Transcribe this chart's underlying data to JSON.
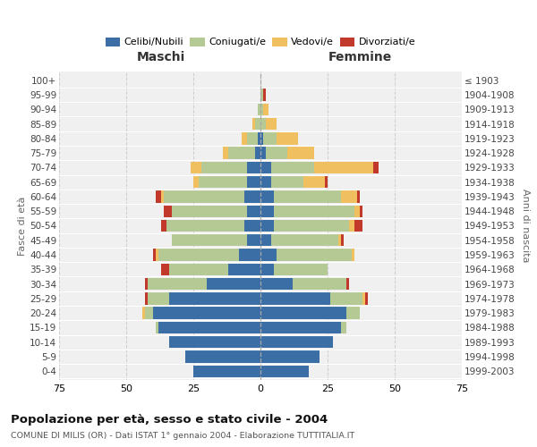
{
  "age_groups": [
    "0-4",
    "5-9",
    "10-14",
    "15-19",
    "20-24",
    "25-29",
    "30-34",
    "35-39",
    "40-44",
    "45-49",
    "50-54",
    "55-59",
    "60-64",
    "65-69",
    "70-74",
    "75-79",
    "80-84",
    "85-89",
    "90-94",
    "95-99",
    "100+"
  ],
  "birth_years": [
    "1999-2003",
    "1994-1998",
    "1989-1993",
    "1984-1988",
    "1979-1983",
    "1974-1978",
    "1969-1973",
    "1964-1968",
    "1959-1963",
    "1954-1958",
    "1949-1953",
    "1944-1948",
    "1939-1943",
    "1934-1938",
    "1929-1933",
    "1924-1928",
    "1919-1923",
    "1914-1918",
    "1909-1913",
    "1904-1908",
    "≤ 1903"
  ],
  "maschi": {
    "celibi": [
      25,
      28,
      34,
      38,
      40,
      34,
      20,
      12,
      8,
      5,
      6,
      5,
      6,
      5,
      5,
      2,
      1,
      0,
      0,
      0,
      0
    ],
    "coniugati": [
      0,
      0,
      0,
      1,
      3,
      8,
      22,
      22,
      30,
      28,
      29,
      28,
      30,
      18,
      17,
      10,
      4,
      2,
      1,
      0,
      0
    ],
    "vedovi": [
      0,
      0,
      0,
      0,
      1,
      0,
      0,
      0,
      1,
      0,
      0,
      0,
      1,
      2,
      4,
      2,
      2,
      1,
      0,
      0,
      0
    ],
    "divorziati": [
      0,
      0,
      0,
      0,
      0,
      1,
      1,
      3,
      1,
      0,
      2,
      3,
      2,
      0,
      0,
      0,
      0,
      0,
      0,
      0,
      0
    ]
  },
  "femmine": {
    "nubili": [
      18,
      22,
      27,
      30,
      32,
      26,
      12,
      5,
      6,
      4,
      5,
      5,
      5,
      4,
      4,
      2,
      1,
      0,
      0,
      0,
      0
    ],
    "coniugate": [
      0,
      0,
      0,
      2,
      5,
      12,
      20,
      20,
      28,
      25,
      28,
      30,
      25,
      12,
      16,
      8,
      5,
      2,
      1,
      1,
      0
    ],
    "vedove": [
      0,
      0,
      0,
      0,
      0,
      1,
      0,
      0,
      1,
      1,
      2,
      2,
      6,
      8,
      22,
      10,
      8,
      4,
      2,
      0,
      0
    ],
    "divorziate": [
      0,
      0,
      0,
      0,
      0,
      1,
      1,
      0,
      0,
      1,
      3,
      1,
      1,
      1,
      2,
      0,
      0,
      0,
      0,
      1,
      0
    ]
  },
  "color_celibi": "#3a6ea5",
  "color_coniugati": "#b5c994",
  "color_vedovi": "#f0c060",
  "color_divorziati": "#c0392b",
  "xlim": 75,
  "title": "Popolazione per età, sesso e stato civile - 2004",
  "subtitle": "COMUNE DI MILIS (OR) - Dati ISTAT 1° gennaio 2004 - Elaborazione TUTTITALIA.IT",
  "xlabel_left": "Maschi",
  "xlabel_right": "Femmine",
  "ylabel_left": "Fasce di età",
  "ylabel_right": "Anni di nascita",
  "bg_color": "#ffffff",
  "grid_color": "#cccccc"
}
